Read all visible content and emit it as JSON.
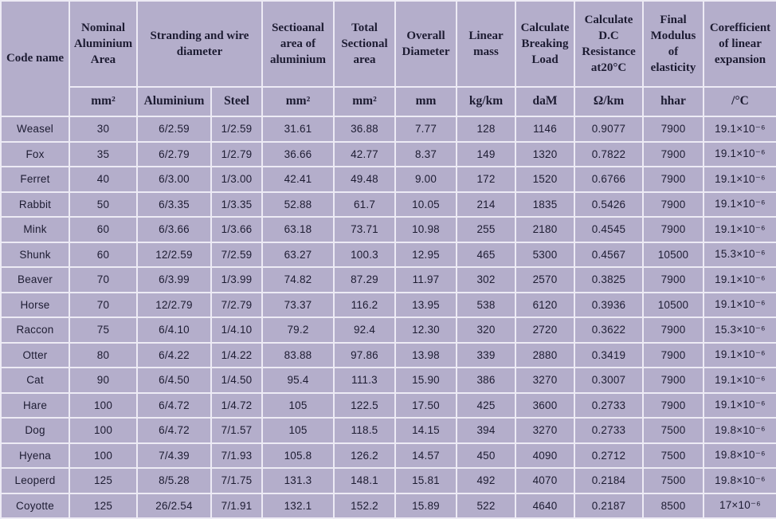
{
  "table": {
    "title_semantic": "ACSR conductor properties table",
    "header": {
      "code_name": "Code name",
      "nominal_area": "Nominal Aluminium Area",
      "stranding": "Stranding and wire diameter",
      "sectional_al": "Sectioanal area of aluminium",
      "total_sectional": "Total Sectional area",
      "overall_diameter": "Overall Diameter",
      "linear_mass": "Linear mass",
      "breaking_load": "Calculate Breaking Load",
      "dc_resistance": "Calculate D.C Resistance at20°C",
      "final_modulus": "Final Modulus of elasticity",
      "coefficient": "Corefficient of linear expansion"
    },
    "units": {
      "nominal_area": "mm²",
      "aluminium": "Aluminium",
      "steel": "Steel",
      "sectional_al": "mm²",
      "total_sectional": "mm²",
      "overall_diameter": "mm",
      "linear_mass": "kg/km",
      "breaking_load": "daM",
      "dc_resistance": "Ω/km",
      "final_modulus": "hhar",
      "coefficient": "/°C"
    },
    "colors": {
      "cell_background": "#b4aecb",
      "grid_line": "#edebf5",
      "text": "#1d1c32"
    },
    "rows": [
      [
        "Weasel",
        "30",
        "6/2.59",
        "1/2.59",
        "31.61",
        "36.88",
        "7.77",
        "128",
        "1146",
        "0.9077",
        "7900",
        "19.1×10⁻⁶"
      ],
      [
        "Fox",
        "35",
        "6/2.79",
        "1/2.79",
        "36.66",
        "42.77",
        "8.37",
        "149",
        "1320",
        "0.7822",
        "7900",
        "19.1×10⁻⁶"
      ],
      [
        "Ferret",
        "40",
        "6/3.00",
        "1/3.00",
        "42.41",
        "49.48",
        "9.00",
        "172",
        "1520",
        "0.6766",
        "7900",
        "19.1×10⁻⁶"
      ],
      [
        "Rabbit",
        "50",
        "6/3.35",
        "1/3.35",
        "52.88",
        "61.7",
        "10.05",
        "214",
        "1835",
        "0.5426",
        "7900",
        "19.1×10⁻⁶"
      ],
      [
        "Mink",
        "60",
        "6/3.66",
        "1/3.66",
        "63.18",
        "73.71",
        "10.98",
        "255",
        "2180",
        "0.4545",
        "7900",
        "19.1×10⁻⁶"
      ],
      [
        "Shunk",
        "60",
        "12/2.59",
        "7/2.59",
        "63.27",
        "100.3",
        "12.95",
        "465",
        "5300",
        "0.4567",
        "10500",
        "15.3×10⁻⁶"
      ],
      [
        "Beaver",
        "70",
        "6/3.99",
        "1/3.99",
        "74.82",
        "87.29",
        "11.97",
        "302",
        "2570",
        "0.3825",
        "7900",
        "19.1×10⁻⁶"
      ],
      [
        "Horse",
        "70",
        "12/2.79",
        "7/2.79",
        "73.37",
        "116.2",
        "13.95",
        "538",
        "6120",
        "0.3936",
        "10500",
        "19.1×10⁻⁶"
      ],
      [
        "Raccon",
        "75",
        "6/4.10",
        "1/4.10",
        "79.2",
        "92.4",
        "12.30",
        "320",
        "2720",
        "0.3622",
        "7900",
        "15.3×10⁻⁶"
      ],
      [
        "Otter",
        "80",
        "6/4.22",
        "1/4.22",
        "83.88",
        "97.86",
        "13.98",
        "339",
        "2880",
        "0.3419",
        "7900",
        "19.1×10⁻⁶"
      ],
      [
        "Cat",
        "90",
        "6/4.50",
        "1/4.50",
        "95.4",
        "111.3",
        "15.90",
        "386",
        "3270",
        "0.3007",
        "7900",
        "19.1×10⁻⁶"
      ],
      [
        "Hare",
        "100",
        "6/4.72",
        "1/4.72",
        "105",
        "122.5",
        "17.50",
        "425",
        "3600",
        "0.2733",
        "7900",
        "19.1×10⁻⁶"
      ],
      [
        "Dog",
        "100",
        "6/4.72",
        "7/1.57",
        "105",
        "118.5",
        "14.15",
        "394",
        "3270",
        "0.2733",
        "7500",
        "19.8×10⁻⁶"
      ],
      [
        "Hyena",
        "100",
        "7/4.39",
        "7/1.93",
        "105.8",
        "126.2",
        "14.57",
        "450",
        "4090",
        "0.2712",
        "7500",
        "19.8×10⁻⁶"
      ],
      [
        "Leoperd",
        "125",
        "8/5.28",
        "7/1.75",
        "131.3",
        "148.1",
        "15.81",
        "492",
        "4070",
        "0.2184",
        "7500",
        "19.8×10⁻⁶"
      ],
      [
        "Coyotte",
        "125",
        "26/2.54",
        "7/1.91",
        "132.1",
        "152.2",
        "15.89",
        "522",
        "4640",
        "0.2187",
        "8500",
        "17×10⁻⁶"
      ]
    ]
  }
}
